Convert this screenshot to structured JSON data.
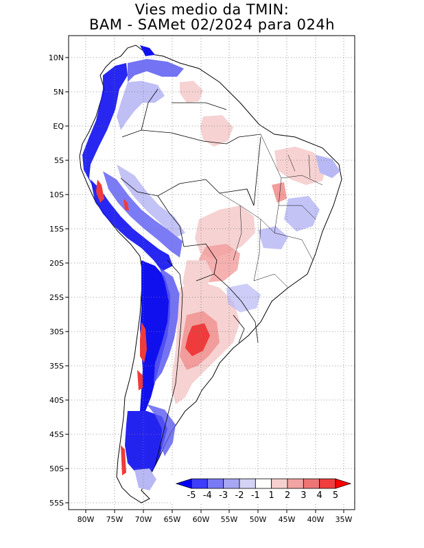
{
  "title": {
    "line1": "Vies medio da TMIN:",
    "line2": "BAM - SAMet 02/2024  para 024h"
  },
  "axes": {
    "lat_labels": [
      "10N",
      "5N",
      "EQ",
      "5S",
      "10S",
      "15S",
      "20S",
      "25S",
      "30S",
      "35S",
      "40S",
      "45S",
      "50S",
      "55S"
    ],
    "lon_labels": [
      "80W",
      "75W",
      "70W",
      "65W",
      "60W",
      "55W",
      "50W",
      "45W",
      "40W",
      "35W"
    ]
  },
  "colorbar": {
    "labels": [
      "-5",
      "-4",
      "-3",
      "-2",
      "-1",
      "1",
      "2",
      "3",
      "4",
      "5"
    ],
    "colors": [
      "#0000ff",
      "#3d3dfa",
      "#7a7af4",
      "#a6a6f3",
      "#d3d3f6",
      "#ffffff",
      "#f6cfcf",
      "#f2a3a3",
      "#ef7575",
      "#ef3e3e",
      "#ff0000"
    ]
  },
  "colors": {
    "strong_cold": "#1010ef",
    "moderate_cold": "#5a5af2",
    "weak_cold": "#b8b8f4",
    "weak_warm": "#f6d2d2",
    "moderate_warm": "#f29c9c",
    "strong_warm": "#ef3b3b"
  }
}
